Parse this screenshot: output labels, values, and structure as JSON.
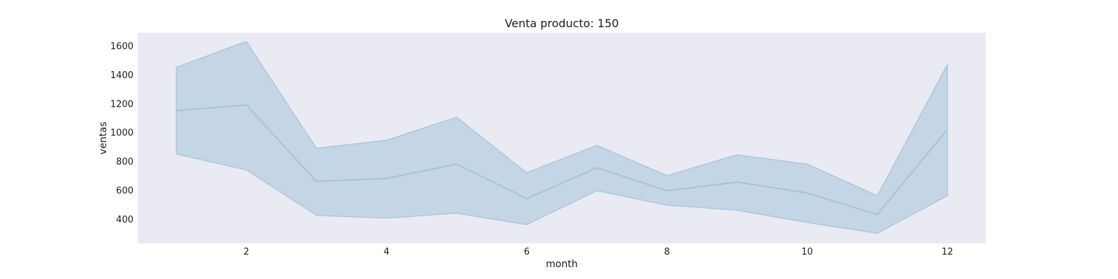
{
  "chart_data": {
    "type": "line",
    "title": "Venta producto: 150",
    "xlabel": "month",
    "ylabel": "ventas",
    "x": [
      1,
      2,
      3,
      4,
      5,
      6,
      7,
      8,
      9,
      10,
      11,
      12
    ],
    "series": [
      {
        "values": [
          1150,
          1190,
          660,
          680,
          780,
          540,
          755,
          595,
          655,
          580,
          430,
          1020
        ],
        "upper": [
          1450,
          1630,
          890,
          945,
          1105,
          720,
          910,
          700,
          845,
          780,
          560,
          1470
        ],
        "lower": [
          850,
          740,
          425,
          405,
          440,
          360,
          595,
          495,
          460,
          375,
          300,
          560
        ]
      }
    ],
    "xlim": [
      0.45,
      12.55
    ],
    "ylim": [
      230,
      1690
    ],
    "xticks": [
      2,
      4,
      6,
      8,
      10,
      12
    ],
    "yticks": [
      400,
      600,
      800,
      1000,
      1200,
      1400,
      1600
    ],
    "grid": false,
    "background": "#eaeaf2",
    "line_color": "#a4c2dc",
    "band_color": "#a4c2dc"
  }
}
